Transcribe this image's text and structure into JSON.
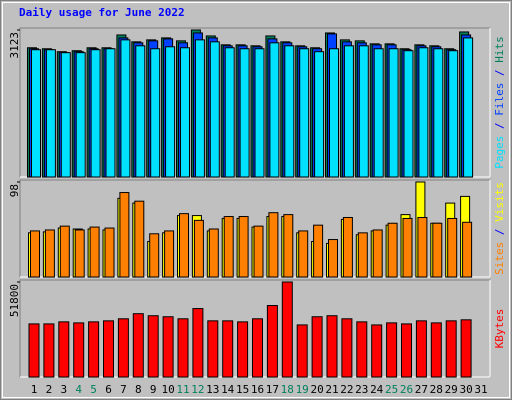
{
  "title": "Daily usage for June 2022",
  "legend_separator": " / ",
  "chart_data": [
    {
      "type": "bar",
      "ylim": [
        0,
        3123
      ],
      "yticks": [
        3123
      ],
      "series": [
        {
          "name": "Hits",
          "color": "#00805c",
          "values": [
            2743,
            2722,
            2659,
            2680,
            2743,
            2743,
            3017,
            2870,
            2912,
            2954,
            2891,
            3123,
            2996,
            2806,
            2806,
            2785,
            2996,
            2870,
            2785,
            2743,
            3060,
            2912,
            2891,
            2827,
            2827,
            2722,
            2806,
            2785,
            2722,
            3081,
            null
          ]
        },
        {
          "name": "Files",
          "color": "#0040ff",
          "values": [
            2722,
            2701,
            2638,
            2659,
            2722,
            2722,
            2954,
            2849,
            2891,
            2933,
            2849,
            3060,
            2954,
            2785,
            2785,
            2764,
            2933,
            2849,
            2764,
            2722,
            3039,
            2870,
            2849,
            2806,
            2806,
            2701,
            2785,
            2764,
            2701,
            3017,
            null
          ]
        },
        {
          "name": "Pages",
          "color": "#00e0ff",
          "values": [
            2701,
            2701,
            2638,
            2638,
            2701,
            2722,
            2912,
            2785,
            2722,
            2764,
            2743,
            2912,
            2870,
            2743,
            2722,
            2722,
            2849,
            2785,
            2722,
            2659,
            2722,
            2785,
            2785,
            2722,
            2722,
            2680,
            2743,
            2722,
            2680,
            2954,
            null
          ]
        }
      ]
    },
    {
      "type": "bar",
      "ylim": [
        0,
        98
      ],
      "yticks": [
        98
      ],
      "series": [
        {
          "name": "Visits",
          "color": "#ffff00",
          "values": [
            45,
            46,
            50,
            49,
            49,
            48,
            81,
            76,
            36,
            45,
            63,
            63,
            47,
            60,
            60,
            51,
            62,
            62,
            45,
            36,
            34,
            59,
            43,
            47,
            53,
            64,
            98,
            55,
            76,
            83,
            null
          ]
        },
        {
          "name": "Sites",
          "color": "#ff8000",
          "values": [
            47,
            48,
            52,
            48,
            51,
            50,
            87,
            78,
            44,
            47,
            65,
            58,
            49,
            62,
            62,
            52,
            66,
            64,
            47,
            53,
            38,
            61,
            45,
            48,
            55,
            60,
            61,
            55,
            60,
            56,
            null
          ]
        }
      ]
    },
    {
      "type": "bar",
      "ylim": [
        0,
        51800
      ],
      "yticks": [
        51800
      ],
      "categories": [
        "1",
        "2",
        "3",
        "4",
        "5",
        "6",
        "7",
        "8",
        "9",
        "10",
        "11",
        "12",
        "13",
        "14",
        "15",
        "16",
        "17",
        "18",
        "19",
        "20",
        "21",
        "22",
        "23",
        "24",
        "25",
        "26",
        "27",
        "28",
        "29",
        "30",
        "31"
      ],
      "category_colors": [
        "#000000",
        "#000000",
        "#000000",
        "#00805c",
        "#00805c",
        "#000000",
        "#000000",
        "#000000",
        "#000000",
        "#000000",
        "#00805c",
        "#00805c",
        "#000000",
        "#000000",
        "#000000",
        "#000000",
        "#000000",
        "#00805c",
        "#00805c",
        "#000000",
        "#000000",
        "#000000",
        "#000000",
        "#000000",
        "#00805c",
        "#00805c",
        "#000000",
        "#000000",
        "#000000",
        "#000000",
        "#000000"
      ],
      "series": [
        {
          "name": "KBytes",
          "color": "#ff0000",
          "values": [
            28715,
            28715,
            29841,
            29278,
            29841,
            30404,
            31530,
            34345,
            33219,
            32656,
            31530,
            37161,
            30404,
            30404,
            29841,
            31530,
            38850,
            51800,
            28152,
            32656,
            33219,
            31530,
            29841,
            28152,
            29278,
            28715,
            30404,
            29278,
            30404,
            30967,
            null
          ]
        }
      ]
    }
  ]
}
